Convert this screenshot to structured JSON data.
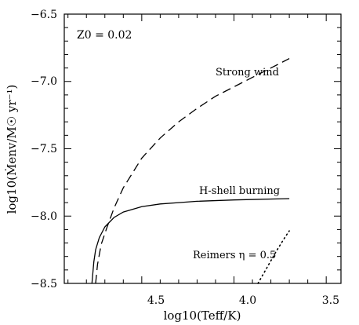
{
  "chart_data": {
    "type": "line",
    "xlabel": "log10(Teff/K)",
    "ylabel": "log10(Ṁenv/M☉ yr⁻¹)",
    "xlim": [
      4.92,
      3.42
    ],
    "ylim": [
      -8.5,
      -6.5
    ],
    "x_reversed": true,
    "x_ticks": [
      "4.5",
      "4.0",
      "3.5"
    ],
    "y_ticks": [
      "−6.5",
      "−7.0",
      "−7.5",
      "−8.0",
      "−8.5"
    ],
    "annotations": {
      "z0": "Z0 = 0.02",
      "strong_wind": "Strong wind",
      "h_shell": "H-shell burning",
      "reimers": "Reimers η = 0.5"
    },
    "series": [
      {
        "name": "Strong wind",
        "style": "dashed",
        "points": [
          [
            4.75,
            -8.5
          ],
          [
            4.74,
            -8.36
          ],
          [
            4.72,
            -8.21
          ],
          [
            4.69,
            -8.09
          ],
          [
            4.65,
            -7.94
          ],
          [
            4.6,
            -7.79
          ],
          [
            4.5,
            -7.57
          ],
          [
            4.4,
            -7.42
          ],
          [
            4.3,
            -7.3
          ],
          [
            4.2,
            -7.2
          ],
          [
            4.1,
            -7.11
          ],
          [
            4.0,
            -7.04
          ],
          [
            3.9,
            -6.97
          ],
          [
            3.8,
            -6.9
          ],
          [
            3.7,
            -6.83
          ]
        ]
      },
      {
        "name": "H-shell burning",
        "style": "solid",
        "points": [
          [
            4.77,
            -8.5
          ],
          [
            4.76,
            -8.34
          ],
          [
            4.75,
            -8.25
          ],
          [
            4.73,
            -8.16
          ],
          [
            4.7,
            -8.08
          ],
          [
            4.65,
            -8.01
          ],
          [
            4.6,
            -7.97
          ],
          [
            4.5,
            -7.93
          ],
          [
            4.4,
            -7.91
          ],
          [
            4.3,
            -7.9
          ],
          [
            4.2,
            -7.89
          ],
          [
            4.0,
            -7.88
          ],
          [
            3.7,
            -7.87
          ]
        ]
      },
      {
        "name": "Reimers η = 0.5",
        "style": "dotted",
        "points": [
          [
            3.87,
            -8.5
          ],
          [
            3.82,
            -8.38
          ],
          [
            3.77,
            -8.26
          ],
          [
            3.72,
            -8.15
          ],
          [
            3.7,
            -8.11
          ]
        ]
      }
    ]
  }
}
